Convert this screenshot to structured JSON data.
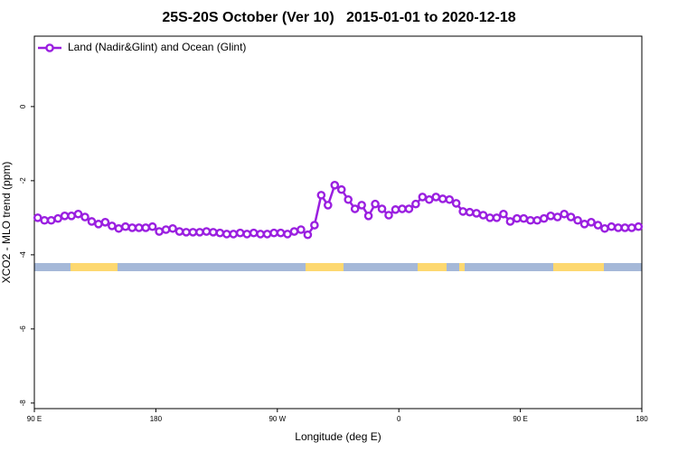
{
  "chart_data": {
    "type": "line",
    "title": "25S-20S October (Ver 10)   2015-01-01 to 2020-12-18",
    "xlabel": "Longitude (deg E)",
    "ylabel": "XCO2 - MLO trend (ppm)",
    "xlim": [
      90,
      540
    ],
    "ylim": [
      -8.15,
      1.9
    ],
    "xticks": [
      {
        "value": 90,
        "label": "90 E"
      },
      180,
      {
        "value": 270,
        "label": "90 W"
      },
      {
        "value": 360,
        "label": "0"
      },
      {
        "value": 450,
        "label": "90 E"
      },
      {
        "value": 540,
        "label": "180"
      }
    ],
    "yticks": [
      0,
      -2,
      -4,
      -6,
      -8
    ],
    "legend": "upper left",
    "series": [
      {
        "name": "Land (Nadir&Glint) and Ocean (Glint)",
        "color": "#9a1fe0",
        "x": [
          92.5,
          97.5,
          102.5,
          107.5,
          112.5,
          117.5,
          122.5,
          127.5,
          132.5,
          137.5,
          142.5,
          147.5,
          152.5,
          157.5,
          162.5,
          167.5,
          172.5,
          177.5,
          182.5,
          187.5,
          192.5,
          197.5,
          202.5,
          207.5,
          212.5,
          217.5,
          222.5,
          227.5,
          232.5,
          237.5,
          242.5,
          247.5,
          252.5,
          257.5,
          262.5,
          267.5,
          272.5,
          277.5,
          282.5,
          287.5,
          292.5,
          297.5,
          302.5,
          307.5,
          312.5,
          317.5,
          322.5,
          327.5,
          332.5,
          337.5,
          342.5,
          347.5,
          352.5,
          357.5,
          362.5,
          367.5,
          372.5,
          377.5,
          382.5,
          387.5,
          392.5,
          397.5,
          402.5,
          407.5,
          412.5,
          417.5,
          422.5,
          427.5,
          432.5,
          437.5,
          442.5,
          447.5,
          452.5,
          457.5,
          462.5,
          467.5,
          472.5,
          477.5,
          482.5,
          487.5,
          492.5,
          497.5,
          502.5,
          507.5,
          512.5,
          517.5,
          522.5,
          527.5,
          532.5,
          537.5
        ],
        "values": [
          -3.0,
          -3.07,
          -3.07,
          -3.02,
          -2.95,
          -2.95,
          -2.9,
          -2.98,
          -3.1,
          -3.17,
          -3.12,
          -3.22,
          -3.29,
          -3.24,
          -3.27,
          -3.27,
          -3.27,
          -3.24,
          -3.37,
          -3.32,
          -3.29,
          -3.37,
          -3.39,
          -3.39,
          -3.39,
          -3.37,
          -3.39,
          -3.41,
          -3.44,
          -3.44,
          -3.41,
          -3.44,
          -3.41,
          -3.44,
          -3.44,
          -3.41,
          -3.41,
          -3.44,
          -3.37,
          -3.32,
          -3.46,
          -3.2,
          -2.39,
          -2.66,
          -2.12,
          -2.24,
          -2.51,
          -2.76,
          -2.66,
          -2.95,
          -2.63,
          -2.76,
          -2.93,
          -2.78,
          -2.76,
          -2.76,
          -2.63,
          -2.44,
          -2.51,
          -2.44,
          -2.49,
          -2.51,
          -2.61,
          -2.83,
          -2.85,
          -2.88,
          -2.93,
          -3.0,
          -3.0,
          -2.9,
          -3.1,
          -3.02,
          -3.02,
          -3.07,
          -3.07,
          -3.02,
          -2.95,
          -2.98,
          -2.9,
          -2.98,
          -3.07,
          -3.17,
          -3.12,
          -3.2,
          -3.29,
          -3.24,
          -3.27,
          -3.27,
          -3.27,
          -3.24
        ]
      }
    ]
  }
}
